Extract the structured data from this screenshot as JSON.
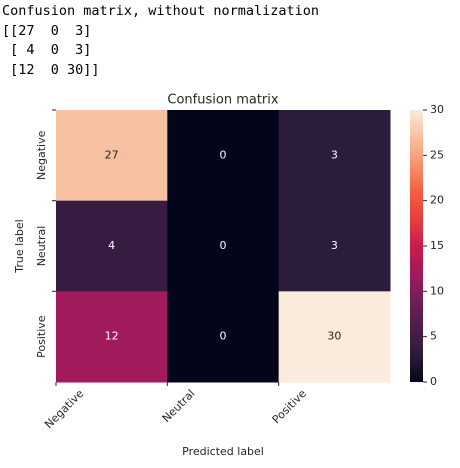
{
  "output_text": [
    "Confusion matrix, without normalization",
    "[[27  0  3]",
    " [ 4  0  3]",
    " [12  0 30]]"
  ],
  "chart_data": {
    "type": "heatmap",
    "title": "Confusion matrix",
    "xlabel": "Predicted label",
    "ylabel": "True label",
    "x_categories": [
      "Negative",
      "Neutral",
      "Positive"
    ],
    "y_categories": [
      "Negative",
      "Neutral",
      "Positive"
    ],
    "values": [
      [
        27,
        0,
        3
      ],
      [
        4,
        0,
        3
      ],
      [
        12,
        0,
        30
      ]
    ],
    "colormap": "rocket",
    "clim": [
      0,
      30
    ],
    "cticks": [
      0,
      5,
      10,
      15,
      20,
      25,
      30
    ]
  }
}
